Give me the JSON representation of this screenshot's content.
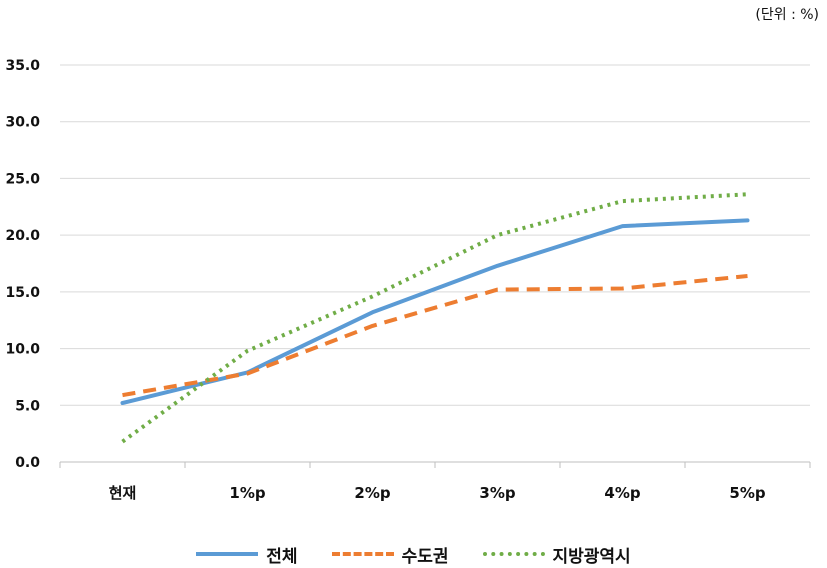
{
  "unit_label": "(단위 : %)",
  "colors": {
    "series1": "#5b9bd5",
    "series2": "#ed7d31",
    "series3": "#70ad47",
    "grid": "#d9d9d9",
    "axis": "#bfbfbf"
  },
  "chart_data": {
    "type": "line",
    "title": "",
    "xlabel": "",
    "ylabel": "",
    "categories": [
      "현재",
      "1%p",
      "2%p",
      "3%p",
      "4%p",
      "5%p"
    ],
    "ylim": [
      0,
      35
    ],
    "yticks": [
      "0.0",
      "5.0",
      "10.0",
      "15.0",
      "20.0",
      "25.0",
      "30.0",
      "35.0"
    ],
    "ytick_values": [
      0,
      5,
      10,
      15,
      20,
      25,
      30,
      35
    ],
    "grid": true,
    "legend_position": "bottom",
    "series": [
      {
        "name": "전체",
        "style": "solid",
        "values": [
          5.2,
          7.9,
          13.2,
          17.3,
          20.8,
          21.3
        ]
      },
      {
        "name": "수도권",
        "style": "dashed",
        "values": [
          5.9,
          7.8,
          12.0,
          15.2,
          15.3,
          16.4
        ]
      },
      {
        "name": "지방광역시",
        "style": "dotted",
        "values": [
          1.8,
          9.8,
          14.6,
          20.0,
          23.0,
          23.6
        ]
      }
    ]
  }
}
